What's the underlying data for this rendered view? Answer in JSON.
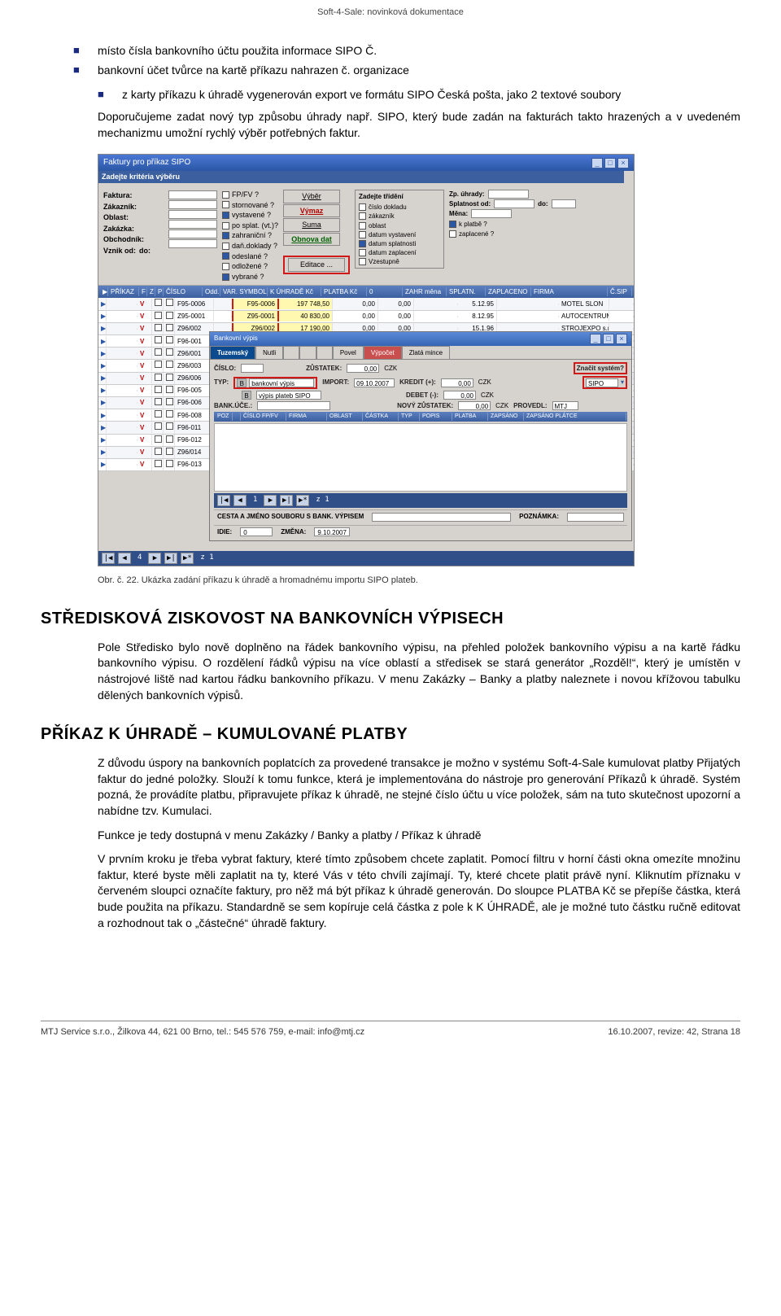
{
  "doc_header": "Soft-4-Sale: novinková dokumentace",
  "bullets": [
    "místo čísla bankovního účtu použita informace SIPO Č.",
    "bankovní účet tvůrce na kartě příkazu nahrazen č. organizace"
  ],
  "nested_bullet": "z karty příkazu k úhradě vygenerován export ve formátu SIPO Česká pošta, jako 2 textové soubory",
  "para1": "Doporučujeme zadat nový typ způsobu úhrady např. SIPO, který bude zadán na fakturách takto hrazených a v uvedeném mechanizmu umožní rychlý výběr potřebných faktur.",
  "caption": "Obr. č. 22. Ukázka zadání příkazu k úhradě a hromadnému importu SIPO plateb.",
  "sec1_title": "STŘEDISKOVÁ ZISKOVOST NA BANKOVNÍCH VÝPISECH",
  "sec1_body": "Pole Středisko bylo nově doplněno na řádek bankovního výpisu, na přehled položek bankovního výpisu a na kartě řádku bankovního výpisu. O rozdělení řádků výpisu na více oblastí a středisek se stará generátor „Rozděl!“, který je umístěn v nástrojové liště nad kartou řádku bankovního příkazu. V menu Zakázky – Banky a platby naleznete i novou křížovou tabulku dělených bankovních výpisů.",
  "sec2_title": "PŘÍKAZ K ÚHRADĚ – KUMULOVANÉ PLATBY",
  "sec2_p1": "Z důvodu úspory na bankovních poplatcích za provedené transakce je možno v systému Soft-4-Sale kumulovat platby Přijatých faktur do jedné položky. Slouží k tomu funkce, která je implementována do nástroje pro generování Příkazů k úhradě. Systém pozná, že provádíte platbu, připravujete příkaz k úhradě, ne stejné číslo účtu u více položek, sám na tuto skutečnost upozorní a nabídne tzv. Kumulaci.",
  "sec2_p2": "Funkce je tedy dostupná v menu Zakázky / Banky a platby / Příkaz k úhradě",
  "sec2_p3": "V prvním kroku je třeba vybrat faktury, které tímto způsobem chcete zaplatit. Pomocí filtru v horní části okna omezíte množinu faktur, které byste měli zaplatit na ty, které Vás v této chvíli zajímají. Ty, které chcete platit právě nyní. Kliknutím příznaku v červeném sloupci označíte faktury, pro něž má být příkaz k úhradě generován. Do sloupce PLATBA Kč se přepíše částka, která bude použita na příkazu. Standardně se sem kopíruje celá částka z pole k K ÚHRADĚ, ale je možné tuto částku ručně editovat a rozhodnout tak o „částečné“ úhradě faktury.",
  "footer_left": "MTJ Service s.r.o., Žilkova 44, 621 00 Brno, tel.: 545 576 759, e-mail: info@mtj.cz",
  "footer_right": "16.10.2007, revize: 42, Strana 18",
  "mock": {
    "title": "Faktury pro příkaz SIPO",
    "crit_label": "Zadejte kritéria výběru",
    "labels": [
      "Faktura:",
      "Zákazník:",
      "Oblast:",
      "Zakázka:",
      "Obchodník:",
      "Vznik od:",
      "do:"
    ],
    "chks1": [
      "FP/FV ?",
      "stornované ?",
      "vystavené ?",
      "po splat. (vt.)?",
      "zahraniční ?",
      "daň.doklady ?",
      "odeslané ?",
      "odložené ?",
      "vybrané ?"
    ],
    "btns": {
      "vyber": "Výběr",
      "vymaz": "Výmaz",
      "suma": "Suma",
      "obnova": "Obnova dat",
      "edit": "Editace ..."
    },
    "trideni_title": "Zadejte třídění",
    "trideni": [
      "číslo dokladu",
      "zákazník",
      "oblast",
      "datum vystavení",
      "datum splatnosti",
      "datum zaplacení",
      "Vzestupně"
    ],
    "side": {
      "zp": "Zp. úhrady:",
      "splat": "Splatnost od:",
      "do": "do:",
      "mena": "Měna:",
      "kpl": "k platbě ?",
      "zpl": "zaplacené ?"
    },
    "grid_headers": [
      "PŘÍKAZ",
      "F",
      "Z",
      "P",
      "ČÍSLO",
      "Odd.",
      "VAR. SYMBOL",
      "K ÚHRADĚ Kč",
      "PLATBA Kč",
      "0",
      "ZAHR měna",
      "SPLATN.",
      "ZAPLACENO",
      "FIRMA",
      "Č.SIP"
    ],
    "rows": [
      {
        "c": "F95-0006",
        "vs": "F95-0006",
        "uh": "197 748,50",
        "pl": "0,00",
        "pl2": "0,00",
        "sp": "5.12.95",
        "firma": "MOTEL SLON"
      },
      {
        "c": "Z95-0001",
        "vs": "Z95-0001",
        "uh": "40 830,00",
        "pl": "0,00",
        "pl2": "0,00",
        "sp": "8.12.95",
        "firma": "AUTOCENTRUM"
      },
      {
        "c": "Z96/002",
        "vs": "Z96/002",
        "uh": "17 190,00",
        "pl": "0,00",
        "pl2": "0,00",
        "sp": "15.1.96",
        "firma": "STROJEXPO s.r.o."
      },
      {
        "c": "F96-001",
        "vs": "",
        "uh": "",
        "pl": "",
        "pl2": "",
        "sp": "",
        "firma": ""
      },
      {
        "c": "Z96/001",
        "vs": "",
        "uh": "",
        "pl": "",
        "pl2": "",
        "sp": "",
        "firma": ""
      },
      {
        "c": "Z96/003",
        "vs": "",
        "uh": "",
        "pl": "",
        "pl2": "",
        "sp": "",
        "firma": ""
      },
      {
        "c": "Z96/006",
        "vs": "",
        "uh": "",
        "pl": "",
        "pl2": "",
        "sp": "",
        "firma": ""
      },
      {
        "c": "F96-005",
        "vs": "",
        "uh": "",
        "pl": "",
        "pl2": "",
        "sp": "",
        "firma": ""
      },
      {
        "c": "F96-006",
        "vs": "",
        "uh": "",
        "pl": "",
        "pl2": "",
        "sp": "",
        "firma": ""
      },
      {
        "c": "F96-008",
        "vs": "",
        "uh": "",
        "pl": "",
        "pl2": "",
        "sp": "",
        "firma": ""
      },
      {
        "c": "F96-011",
        "vs": "",
        "uh": "",
        "pl": "",
        "pl2": "",
        "sp": "",
        "firma": ""
      },
      {
        "c": "F96-012",
        "vs": "",
        "uh": "",
        "pl": "",
        "pl2": "",
        "sp": "",
        "firma": ""
      },
      {
        "c": "Z96/014",
        "vs": "",
        "uh": "",
        "pl": "",
        "pl2": "",
        "sp": "",
        "firma": ""
      },
      {
        "c": "F96-013",
        "vs": "",
        "uh": "",
        "pl": "",
        "pl2": "",
        "sp": "",
        "firma": ""
      }
    ],
    "inner": {
      "title": "Bankovní výpis",
      "tabs": [
        "Tuzemský",
        "Nutli",
        "",
        "",
        "",
        "Povel",
        "Výpočet",
        "Zlatá mince"
      ],
      "cislo": "ČÍSLO:",
      "typ": "TYP:",
      "bank": "BANK.ÚČE.:",
      "typ_val": "bankovní výpis",
      "typ_val2": "výpis plateb SIPO",
      "import": "IMPORT:",
      "import_v": "09.10.2007",
      "zust": "ZŮSTATEK:",
      "zv": "0,00",
      "czk": "CZK",
      "kred": "KREDIT (+):",
      "kv": "0,00",
      "deb": "DEBET (-):",
      "dv": "0,00",
      "novy": "NOVÝ ZŮSTATEK:",
      "nv": "0,00",
      "prov": "PROVEDL:",
      "pv": "MTJ",
      "znacit": "Značit systém?",
      "zval": "SIPO",
      "ihd": [
        "POZ",
        "",
        "ČÍSLO FP/FV",
        "FIRMA",
        "OBLAST",
        "ČÁSTKA",
        "TYP",
        "POPIS",
        "PLATBA",
        "ZAPSÁNO",
        "ZAPSÁNO PLÁTCE"
      ],
      "nav": "z 1",
      "cesta": "CESTA A JMÉNO SOUBORU S BANK. VÝPISEM",
      "poz": "POZNÁMKA:",
      "idie": "IDIE:",
      "idv": "0",
      "zmena": "ZMĚNA:",
      "zmv": "9.10.2007"
    },
    "nav_outer": "z 1"
  }
}
